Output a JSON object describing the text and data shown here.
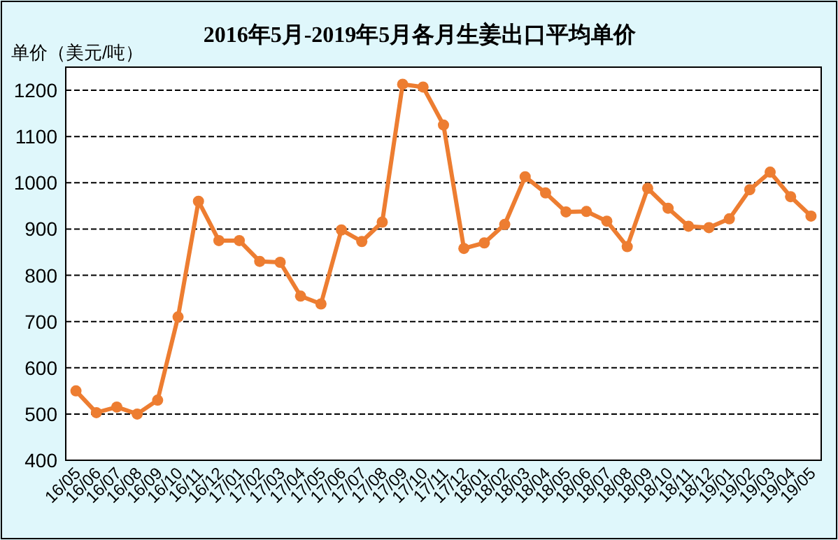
{
  "chart_data": {
    "type": "line",
    "title": "2016年5月-2019年5月各月生姜出口平均单价",
    "ylabel": "单价（美元/吨）",
    "categories": [
      "16/05",
      "16/06",
      "16/07",
      "16/08",
      "16/09",
      "16/10",
      "16/11",
      "16/12",
      "17/01",
      "17/02",
      "17/03",
      "17/04",
      "17/05",
      "17/06",
      "17/07",
      "17/08",
      "17/09",
      "17/10",
      "17/11",
      "17/12",
      "18/01",
      "18/02",
      "18/03",
      "18/04",
      "18/05",
      "18/06",
      "18/07",
      "18/08",
      "18/09",
      "18/10",
      "18/11",
      "18/12",
      "19/01",
      "19/02",
      "19/03",
      "19/04",
      "19/05"
    ],
    "series": [
      {
        "color": "#ed7d31",
        "values": [
          550,
          503,
          515,
          500,
          530,
          710,
          960,
          875,
          875,
          830,
          828,
          755,
          738,
          898,
          873,
          915,
          1213,
          1207,
          1125,
          858,
          870,
          910,
          1013,
          978,
          937,
          938,
          917,
          862,
          988,
          945,
          906,
          903,
          922,
          985,
          1023,
          970,
          928
        ]
      }
    ],
    "ylim": [
      400,
      1250
    ],
    "yticks": [
      400,
      500,
      600,
      700,
      800,
      900,
      1000,
      1100,
      1200
    ],
    "grid": "y",
    "marker": "circle",
    "line_style": "solid"
  }
}
